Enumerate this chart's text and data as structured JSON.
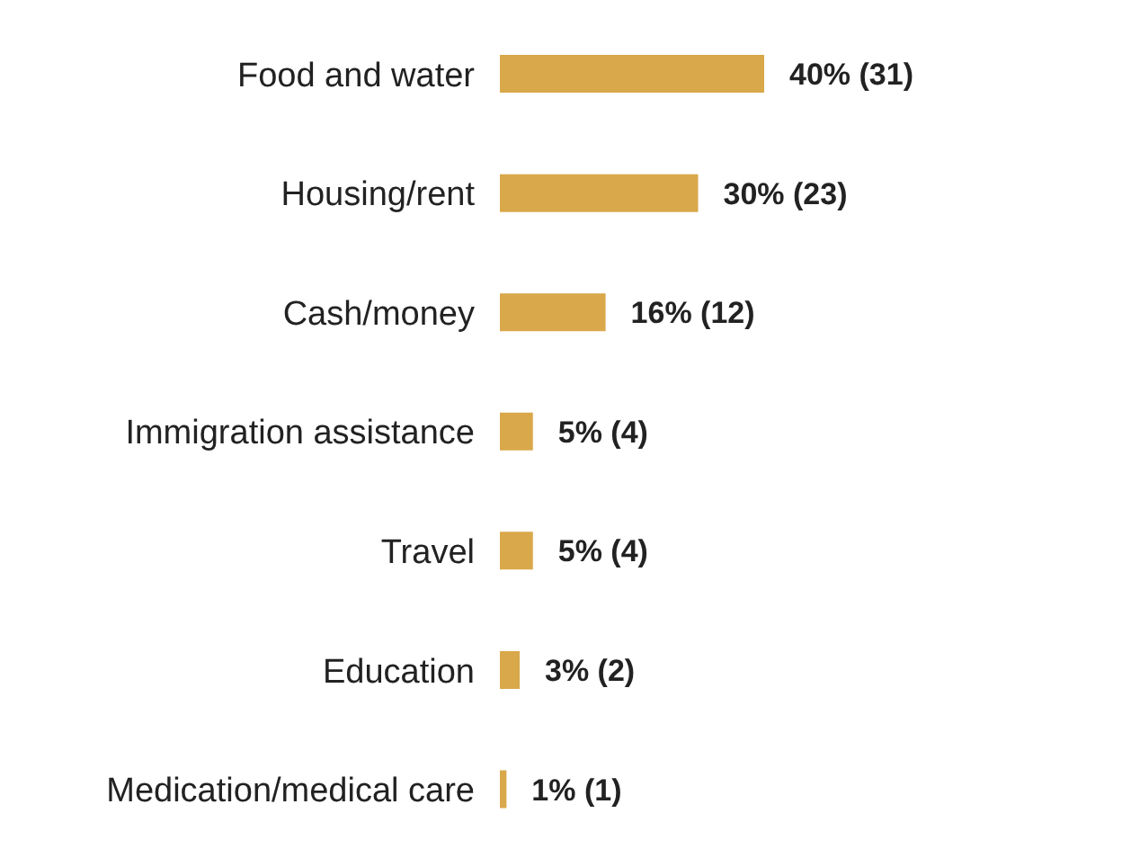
{
  "chart_data": {
    "type": "bar",
    "orientation": "horizontal",
    "categories": [
      "Food and water",
      "Housing/rent",
      "Cash/money",
      "Immigration assistance",
      "Travel",
      "Education",
      "Medication/medical care"
    ],
    "values": [
      40,
      30,
      16,
      5,
      5,
      3,
      1
    ],
    "value_labels": [
      "40% (31)",
      "30% (23)",
      "16% (12)",
      "5% (4)",
      "5% (4)",
      "3% (2)",
      "1% (1)"
    ],
    "color": "#d9a84a"
  }
}
